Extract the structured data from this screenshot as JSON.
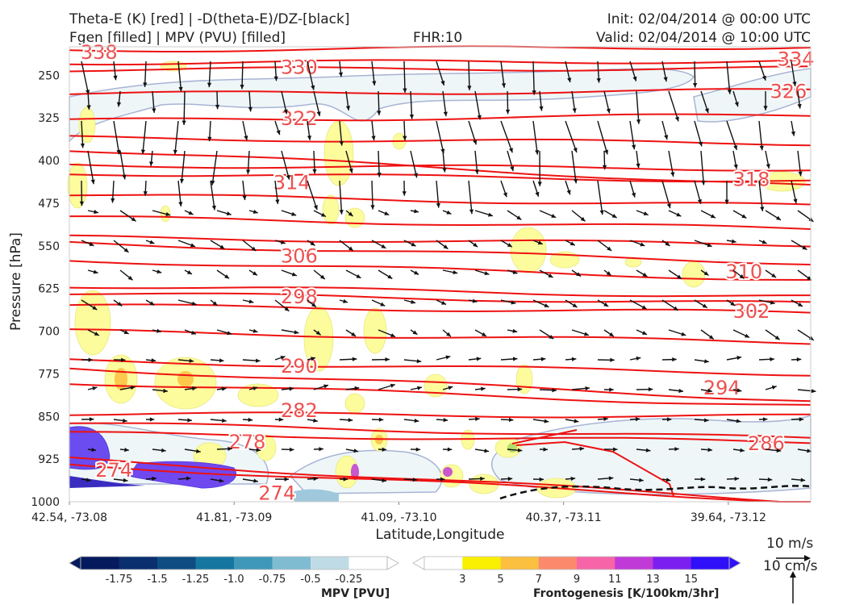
{
  "header": {
    "left_line1": "Theta-E (K) [red] | -D(theta-E)/DZ-[black]",
    "left_line2": "Fgen [filled] | MPV (PVU) [filled]",
    "center": "FHR:10",
    "right_line1": "Init: 02/04/2014 @ 00:00 UTC",
    "right_line2": "Valid: 02/04/2014 @ 10:00 UTC"
  },
  "chart_data": {
    "type": "cross-section",
    "xlabel": "Latitude,Longitude",
    "ylabel": "Pressure [hPa]",
    "y_axis": {
      "scale": "linear-inverted",
      "ylim": [
        1000,
        200
      ]
    },
    "x_ticks": [
      "42.54, -73.08",
      "41.81, -73.09",
      "41.09, -73.10",
      "40.37, -73.11",
      "39.64, -73.12"
    ],
    "y_ticks": [
      250,
      325,
      400,
      475,
      550,
      625,
      700,
      775,
      850,
      925,
      1000
    ],
    "theta_e_contours": [
      {
        "label": "338",
        "p_left": 206,
        "p_right": 200,
        "label_x": 0.04,
        "label_p": 210
      },
      {
        "label": "334",
        "p_left": 228,
        "p_right": 225,
        "label_x": 0.98,
        "label_p": 222
      },
      {
        "label": "330",
        "p_left": 240,
        "p_right": 238,
        "label_x": 0.31,
        "label_p": 236
      },
      {
        "label": "326",
        "p_left": 283,
        "p_right": 277,
        "label_x": 0.97,
        "label_p": 279
      },
      {
        "label": "322",
        "p_left": 330,
        "p_right": 320,
        "label_x": 0.31,
        "label_p": 326
      },
      {
        "label": "",
        "p_left": 360,
        "p_right": 370,
        "label_x": null,
        "label_p": null
      },
      {
        "label": "",
        "p_left": 408,
        "p_right": 415,
        "label_x": null,
        "label_p": null
      },
      {
        "label": "314",
        "p_left": 422,
        "p_right": 436,
        "label_x": 0.3,
        "label_p": 439
      },
      {
        "label": "318",
        "p_left": 380,
        "p_right": 446,
        "label_x": 0.92,
        "label_p": 433
      },
      {
        "label": "",
        "p_left": 460,
        "p_right": 480,
        "label_x": null,
        "label_p": null
      },
      {
        "label": "",
        "p_left": 500,
        "p_right": 520,
        "label_x": null,
        "label_p": null
      },
      {
        "label": "306",
        "p_left": 535,
        "p_right": 548,
        "label_x": 0.31,
        "label_p": 568
      },
      {
        "label": "310",
        "p_left": 545,
        "p_right": 580,
        "label_x": 0.91,
        "label_p": 596
      },
      {
        "label": "",
        "p_left": 575,
        "p_right": 610,
        "label_x": null,
        "label_p": null
      },
      {
        "label": "",
        "p_left": 620,
        "p_right": 640,
        "label_x": null,
        "label_p": null
      },
      {
        "label": "298",
        "p_left": 633,
        "p_right": 652,
        "label_x": 0.31,
        "label_p": 640
      },
      {
        "label": "302",
        "p_left": 655,
        "p_right": 668,
        "label_x": 0.92,
        "label_p": 665
      },
      {
        "label": "",
        "p_left": 700,
        "p_right": 720,
        "label_x": null,
        "label_p": null
      },
      {
        "label": "290",
        "p_left": 752,
        "p_right": 775,
        "label_x": 0.31,
        "label_p": 762
      },
      {
        "label": "294",
        "p_left": 765,
        "p_right": 822,
        "label_x": 0.88,
        "label_p": 800
      },
      {
        "label": "",
        "p_left": 790,
        "p_right": 832,
        "label_x": null,
        "label_p": null
      },
      {
        "label": "282",
        "p_left": 845,
        "p_right": 850,
        "label_x": 0.31,
        "label_p": 840
      },
      {
        "label": "286",
        "p_left": 862,
        "p_right": 889,
        "label_x": 0.94,
        "label_p": 898
      },
      {
        "label": "278",
        "p_left": 880,
        "p_right": 895,
        "label_x": 0.24,
        "label_p": 895
      },
      {
        "label": "274",
        "p_left": 925,
        "p_right": 1000,
        "label_x": 0.06,
        "label_p": 945
      },
      {
        "label": "274",
        "p_left": 935,
        "p_right": 1000,
        "label_x": 0.28,
        "label_p": 985
      }
    ],
    "colorbar_mpv": {
      "label": "MPV [PVU]",
      "ticks": [
        "-1.75",
        "-1.5",
        "-1.25",
        "-1.0",
        "-0.75",
        "-0.5",
        "-0.25"
      ],
      "colors": [
        "#051a5c",
        "#0a2f6e",
        "#0f4c82",
        "#1576a0",
        "#3f98b8",
        "#7fbcd2",
        "#bfdce6",
        "#ffffff"
      ],
      "extend": "both"
    },
    "colorbar_fgen": {
      "label": "Frontogenesis [K/100km/3hr]",
      "ticks": [
        "3",
        "5",
        "7",
        "9",
        "11",
        "13",
        "15"
      ],
      "colors": [
        "#ffffff",
        "#f8f000",
        "#fbbf40",
        "#fb8a6c",
        "#f765a8",
        "#c03ad8",
        "#7b1ff0",
        "#3010f8"
      ],
      "extend": "both"
    },
    "reference_vectors": {
      "horizontal_label": "10 m/s",
      "vertical_label": "10 cm/s"
    }
  }
}
